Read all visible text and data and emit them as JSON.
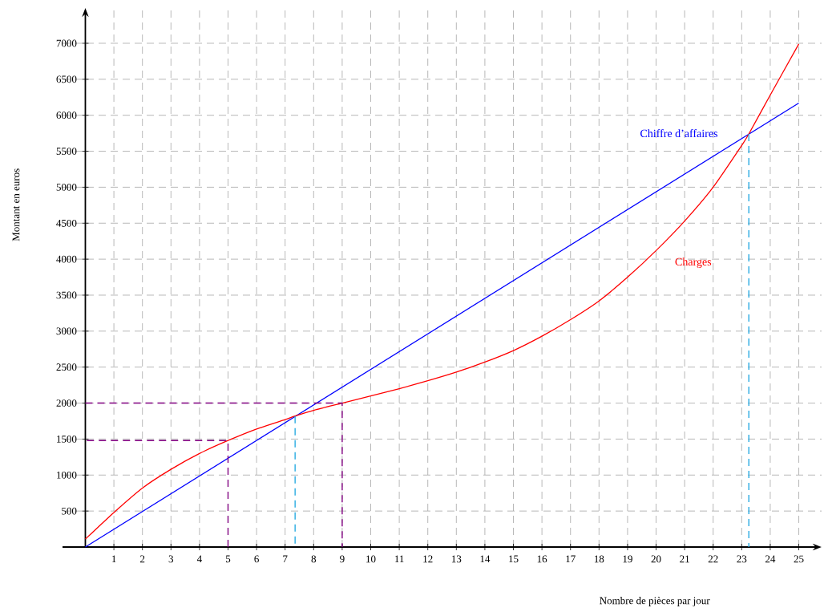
{
  "chart_data": {
    "type": "line",
    "xlabel": "Nombre de pièces par jour",
    "ylabel": "Montant en euros",
    "xlim": [
      -0.8,
      25.8
    ],
    "ylim": [
      0,
      7490
    ],
    "xticks": [
      1,
      2,
      3,
      4,
      5,
      6,
      7,
      8,
      9,
      10,
      11,
      12,
      13,
      14,
      15,
      16,
      17,
      18,
      19,
      20,
      21,
      22,
      23,
      24,
      25
    ],
    "yticks": [
      500,
      1000,
      1500,
      2000,
      2500,
      3000,
      3500,
      4000,
      4500,
      5000,
      5500,
      6000,
      6500,
      7000
    ],
    "grid": true,
    "marker": "none",
    "series": [
      {
        "name": "Chiffre d’affaires",
        "color": "#0000ff",
        "x": [
          0,
          25
        ],
        "values": [
          0,
          6170
        ]
      },
      {
        "name": "Charges",
        "color": "#ff0000",
        "x": [
          0,
          1,
          2,
          3,
          4,
          5,
          6,
          7,
          7.35,
          8,
          9,
          10,
          11,
          12,
          13,
          14,
          15,
          16,
          17,
          18,
          19,
          20,
          21,
          22,
          23,
          23.25,
          24,
          25
        ],
        "values": [
          110,
          480,
          820,
          1080,
          1300,
          1480,
          1640,
          1770,
          1820,
          1900,
          2000,
          2100,
          2200,
          2310,
          2430,
          2570,
          2730,
          2930,
          3160,
          3420,
          3750,
          4120,
          4530,
          5000,
          5580,
          5740,
          6280,
          6990
        ]
      },
      {
        "color": "#800080",
        "line_style": "dashed",
        "x": [
          5,
          5,
          0
        ],
        "values": [
          0,
          1480,
          1480
        ]
      },
      {
        "color": "#800080",
        "line_style": "dashed",
        "x": [
          0,
          9,
          9
        ],
        "values": [
          2000,
          2000,
          0
        ]
      },
      {
        "color": "#29abe2",
        "line_style": "dashed",
        "x": [
          7.35,
          7.35
        ],
        "values": [
          1820,
          0
        ]
      },
      {
        "color": "#29abe2",
        "line_style": "dashed",
        "x": [
          23.25,
          23.25
        ],
        "values": [
          5740,
          0
        ]
      }
    ]
  }
}
